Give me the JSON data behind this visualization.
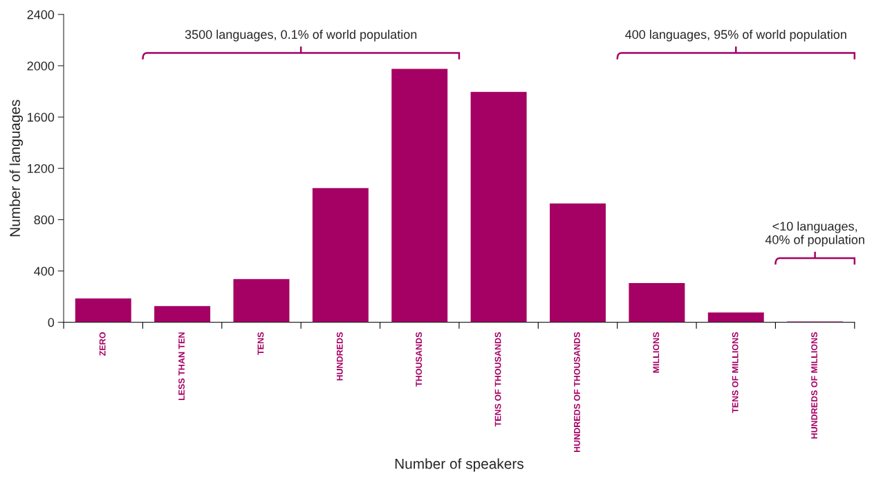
{
  "chart_data": {
    "type": "bar",
    "xlabel": "Number of speakers",
    "ylabel": "Number of languages",
    "categories": [
      "ZERO",
      "LESS THAN TEN",
      "TENS",
      "HUNDREDS",
      "THOUSANDS",
      "TENS OF THOUSANDS",
      "HUNDREDS OF THOUSANDS",
      "MILLIONS",
      "TENS OF MILLIONS",
      "HUNDREDS OF MILLIONS"
    ],
    "values": [
      190,
      130,
      340,
      1050,
      1980,
      1800,
      930,
      310,
      80,
      10
    ],
    "color": "#a50064",
    "ylim": [
      0,
      2400
    ],
    "yticks": [
      0,
      400,
      800,
      1200,
      1600,
      2000,
      2400
    ],
    "grid": false,
    "legend": false,
    "annotations": [
      "3500 languages, 0.1% of world population",
      "400 languages, 95% of world population",
      "<10 languages,\n40% of population"
    ]
  }
}
